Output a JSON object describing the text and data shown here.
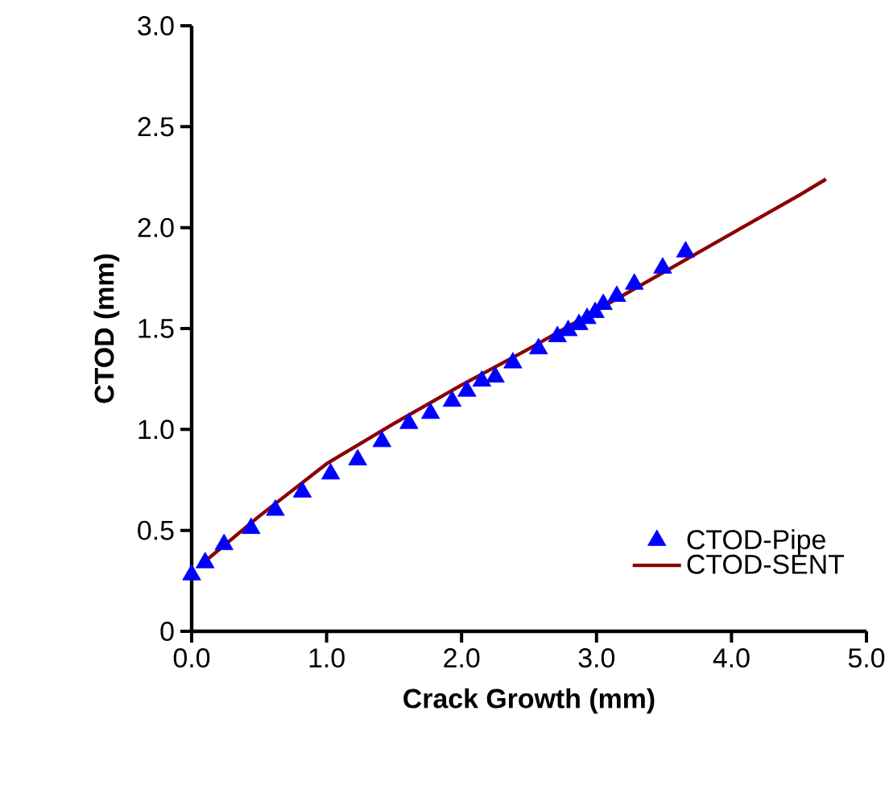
{
  "chart_data": {
    "type": "scatter",
    "xlabel": "Crack Growth (mm)",
    "ylabel": "CTOD  (mm)",
    "xlim": [
      0,
      5
    ],
    "ylim": [
      0,
      3
    ],
    "xticks": [
      {
        "value": 0,
        "label": "0.0"
      },
      {
        "value": 1,
        "label": "1.0"
      },
      {
        "value": 2,
        "label": "2.0"
      },
      {
        "value": 3,
        "label": "3.0"
      },
      {
        "value": 4,
        "label": "4.0"
      },
      {
        "value": 5,
        "label": "5.0"
      }
    ],
    "yticks": [
      0,
      0.5,
      {
        "value": 1,
        "label": "1.0"
      },
      1.5,
      {
        "value": 2,
        "label": "2.0"
      },
      2.5,
      {
        "value": 3,
        "label": "3.0"
      }
    ],
    "legend": "bottom right",
    "series": [
      {
        "name": "CTOD-Pipe",
        "marker": "triangle",
        "color": "#0000ff",
        "x": [
          0,
          0.1,
          0.24,
          0.44,
          0.62,
          0.82,
          1.03,
          1.23,
          1.41,
          1.61,
          1.77,
          1.93,
          2.04,
          2.15,
          2.25,
          2.38,
          2.57,
          2.71,
          2.79,
          2.87,
          2.93,
          2.99,
          3.05,
          3.15,
          3.28,
          3.49,
          3.66
        ],
        "values": [
          0.28,
          0.34,
          0.43,
          0.51,
          0.6,
          0.69,
          0.78,
          0.85,
          0.94,
          1.03,
          1.08,
          1.14,
          1.19,
          1.24,
          1.26,
          1.33,
          1.4,
          1.46,
          1.49,
          1.52,
          1.55,
          1.58,
          1.62,
          1.66,
          1.72,
          1.8,
          1.88
        ]
      },
      {
        "name": "CTOD-SENT",
        "type": "line",
        "line_style": "solid",
        "color": "#8b0000",
        "x": [
          0.07,
          0.5,
          1.0,
          1.5,
          2.0,
          2.5,
          3.0,
          3.5,
          4.0,
          4.5,
          4.7
        ],
        "values": [
          0.33,
          0.57,
          0.83,
          1.03,
          1.22,
          1.4,
          1.59,
          1.78,
          1.97,
          2.16,
          2.24
        ]
      }
    ]
  }
}
